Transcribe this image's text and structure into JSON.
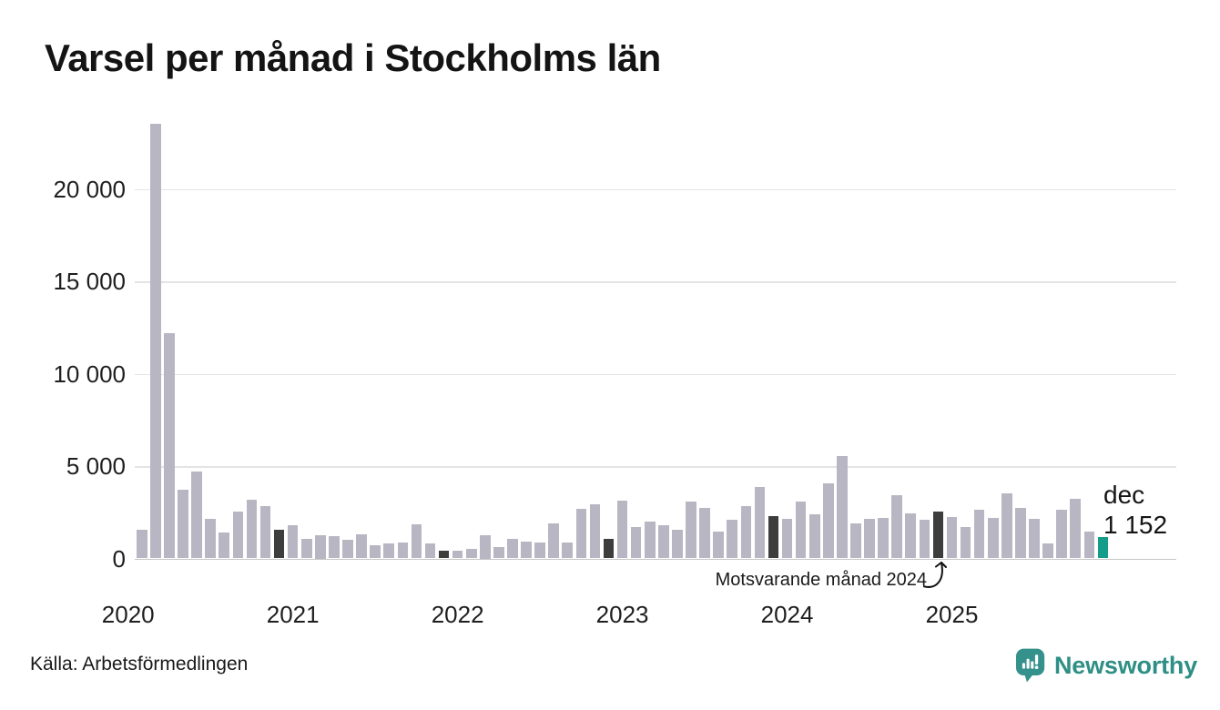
{
  "header": {
    "title": "Varsel per månad i Stockholms län"
  },
  "annotation": {
    "text": "Motsvarande månad 2024"
  },
  "last_label": {
    "month": "dec",
    "value": "1 152"
  },
  "footer": {
    "source": "Källa: Arbetsförmedlingen",
    "brand_name": "Newsworthy"
  },
  "colors": {
    "bar_default": "#b9b6c4",
    "bar_december": "#3d3d3d",
    "bar_current": "#169c8a",
    "brand_teal": "#2e8f85",
    "grid": "#e4e4e4",
    "axis": "#c6c6c6",
    "text": "#1f1f1f"
  },
  "chart_data": {
    "type": "bar",
    "title": "Varsel per månad i Stockholms län",
    "xlabel": "",
    "ylabel": "",
    "ylim": [
      0,
      24200
    ],
    "grid": "horizontal",
    "y_ticks": [
      {
        "label": "0",
        "value": 0
      },
      {
        "label": "5 000",
        "value": 5000
      },
      {
        "label": "10 000",
        "value": 10000
      },
      {
        "label": "15 000",
        "value": 15000
      },
      {
        "label": "20 000",
        "value": 20000
      }
    ],
    "x_year_labels": [
      "2020",
      "2021",
      "2022",
      "2023",
      "2024",
      "2025"
    ],
    "x": [
      "2020-02",
      "2020-03",
      "2020-04",
      "2020-05",
      "2020-06",
      "2020-07",
      "2020-08",
      "2020-09",
      "2020-10",
      "2020-11",
      "2020-12",
      "2021-01",
      "2021-02",
      "2021-03",
      "2021-04",
      "2021-05",
      "2021-06",
      "2021-07",
      "2021-08",
      "2021-09",
      "2021-10",
      "2021-11",
      "2021-12",
      "2022-01",
      "2022-02",
      "2022-03",
      "2022-04",
      "2022-05",
      "2022-06",
      "2022-07",
      "2022-08",
      "2022-09",
      "2022-10",
      "2022-11",
      "2022-12",
      "2023-01",
      "2023-02",
      "2023-03",
      "2023-04",
      "2023-05",
      "2023-06",
      "2023-07",
      "2023-08",
      "2023-09",
      "2023-10",
      "2023-11",
      "2023-12",
      "2024-01",
      "2024-02",
      "2024-03",
      "2024-04",
      "2024-05",
      "2024-06",
      "2024-07",
      "2024-08",
      "2024-09",
      "2024-10",
      "2024-11",
      "2024-12",
      "2025-01",
      "2025-02",
      "2025-03",
      "2025-04",
      "2025-05",
      "2025-06",
      "2025-07",
      "2025-08",
      "2025-09",
      "2025-10",
      "2025-11",
      "2025-12"
    ],
    "values": [
      1550,
      23500,
      12200,
      3700,
      4700,
      2150,
      1400,
      2550,
      3200,
      2850,
      1550,
      1800,
      1050,
      1250,
      1200,
      1000,
      1300,
      700,
      800,
      850,
      1850,
      800,
      400,
      400,
      500,
      1250,
      600,
      1080,
      930,
      840,
      1920,
      880,
      2700,
      2950,
      1080,
      3150,
      1700,
      2000,
      1800,
      1550,
      3100,
      2750,
      1450,
      2100,
      2850,
      3850,
      2300,
      2150,
      3100,
      2400,
      4080,
      5520,
      1890,
      2130,
      2180,
      3400,
      2420,
      2080,
      2550,
      2220,
      1720,
      2630,
      2170,
      3540,
      2750,
      2130,
      810,
      2630,
      3210,
      1470,
      1152
    ],
    "december_highlight_indices": [
      10,
      22,
      34,
      46,
      58
    ],
    "current_month_index": 70,
    "current_month_value": 1152,
    "legend_position": "none"
  }
}
